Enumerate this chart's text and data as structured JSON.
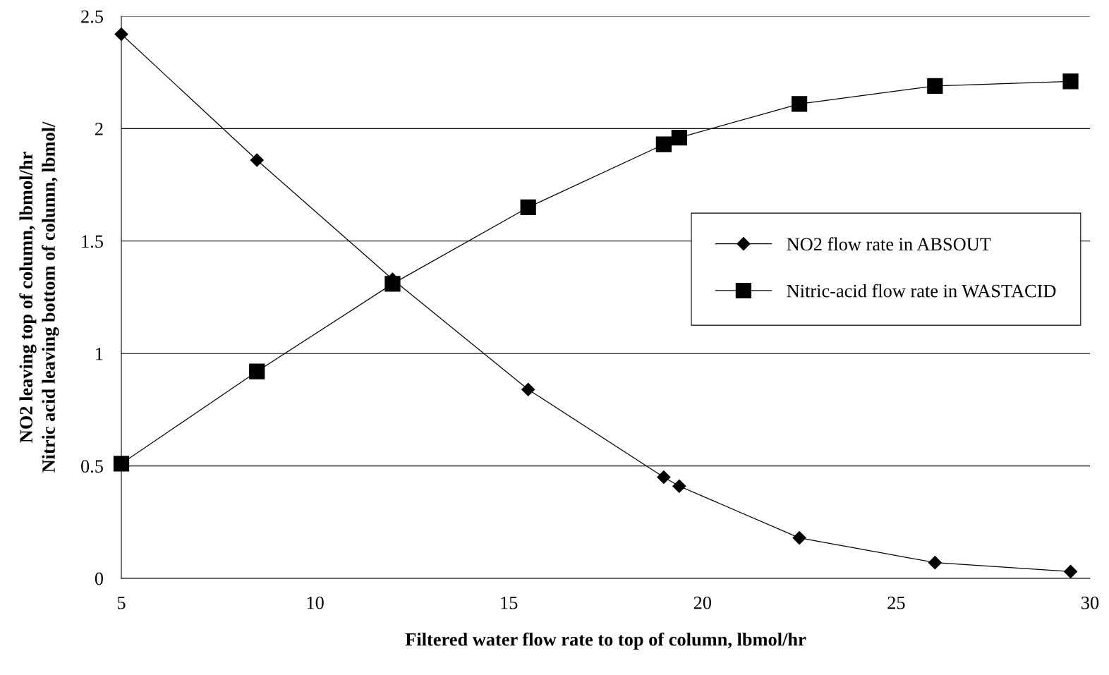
{
  "chart_data": {
    "type": "line",
    "xlabel": "Filtered water flow rate to top of column, lbmol/hr",
    "ylabel": "NO2 leaving top of column, lbmol/hr\nNitric acid leaving bottom of column, lbmol/",
    "x": [
      5,
      8.5,
      12,
      15.5,
      19,
      19.4,
      22.5,
      26,
      29.5
    ],
    "series": [
      {
        "name": "NO2 flow rate in ABSOUT",
        "color": "#000000",
        "marker": "diamond",
        "values": [
          2.42,
          1.86,
          1.33,
          0.84,
          0.45,
          0.41,
          0.18,
          0.07,
          0.03
        ]
      },
      {
        "name": "Nitric-acid flow rate in WASTACID",
        "color": "#000000",
        "marker": "square",
        "values": [
          0.51,
          0.92,
          1.31,
          1.65,
          1.93,
          1.96,
          2.11,
          2.19,
          2.21
        ]
      }
    ],
    "xlim": [
      5,
      30
    ],
    "xticks": [
      5,
      10,
      15,
      20,
      25,
      30
    ],
    "ylim": [
      0,
      2.5
    ],
    "yticks": [
      0,
      0.5,
      1,
      1.5,
      2,
      2.5
    ],
    "grid": "y",
    "legend": "right",
    "line_style": "solid"
  }
}
